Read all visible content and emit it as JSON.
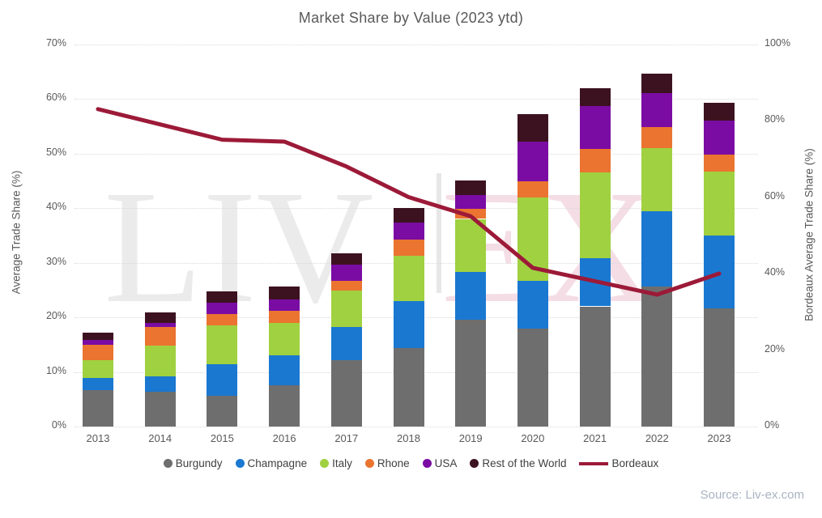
{
  "title": "Market Share by Value (2023 ytd)",
  "source": "Source: Liv-ex.com",
  "watermark": {
    "liv": "LIV",
    "ex": "EX"
  },
  "axes": {
    "left_title": "Average Trade Share (%)",
    "right_title": "Bordeaux Average Trade Share (%)",
    "left_ticks": [
      "70%",
      "60%",
      "50%",
      "40%",
      "30%",
      "20%",
      "10%",
      "0%"
    ],
    "right_ticks": [
      "100%",
      "80%",
      "60%",
      "40%",
      "20%",
      "0%"
    ]
  },
  "colors": {
    "grid": "#d9d9d9",
    "tick_text": "#595959",
    "legend_text": "#3f3f3f",
    "source_text": "#a9b3c2"
  },
  "chart_data": {
    "type": "combo-stacked-bar-line",
    "title": "Market Share by Value (2023 ytd)",
    "categories": [
      "2013",
      "2014",
      "2015",
      "2016",
      "2017",
      "2018",
      "2019",
      "2020",
      "2021",
      "2022",
      "2023"
    ],
    "left_axis": {
      "label": "Average Trade Share (%)",
      "min": 0,
      "max": 70,
      "tick_step": 10,
      "unit": "%"
    },
    "right_axis": {
      "label": "Bordeaux Average Trade Share (%)",
      "min": 0,
      "max": 100,
      "tick_step": 20,
      "unit": "%"
    },
    "grid": "dotted-horizontal",
    "legend_position": "bottom",
    "series": [
      {
        "name": "Burgundy",
        "type": "bar",
        "axis": "left",
        "color": "#6e6e6e",
        "values": [
          6.7,
          6.4,
          5.7,
          7.5,
          12.2,
          14.3,
          19.6,
          17.9,
          22.0,
          25.7,
          21.6
        ]
      },
      {
        "name": "Champagne",
        "type": "bar",
        "axis": "left",
        "color": "#1a78d1",
        "values": [
          2.2,
          2.8,
          5.7,
          5.5,
          6.0,
          8.6,
          8.7,
          8.8,
          8.8,
          13.7,
          13.4
        ]
      },
      {
        "name": "Italy",
        "type": "bar",
        "axis": "left",
        "color": "#a0d140",
        "values": [
          3.2,
          5.6,
          7.1,
          6.0,
          6.7,
          8.4,
          9.7,
          15.2,
          15.7,
          11.6,
          11.6
        ]
      },
      {
        "name": "Rhone",
        "type": "bar",
        "axis": "left",
        "color": "#ea7430",
        "values": [
          2.9,
          3.4,
          2.1,
          2.2,
          1.8,
          2.9,
          1.8,
          3.0,
          4.3,
          3.8,
          3.2
        ]
      },
      {
        "name": "USA",
        "type": "bar",
        "axis": "left",
        "color": "#7a0ca3",
        "values": [
          0.8,
          0.8,
          2.1,
          2.1,
          3.0,
          3.2,
          2.5,
          7.2,
          7.8,
          6.3,
          6.2
        ]
      },
      {
        "name": "Rest of the World",
        "type": "bar",
        "axis": "left",
        "color": "#3d1220",
        "values": [
          1.4,
          1.9,
          2.0,
          2.3,
          2.0,
          2.6,
          2.7,
          5.1,
          3.3,
          3.5,
          3.2
        ]
      },
      {
        "name": "Bordeaux",
        "type": "line",
        "axis": "right",
        "color": "#9c1a38",
        "values": [
          83,
          79,
          75,
          74.5,
          68,
          60,
          55,
          41.5,
          38,
          34.5,
          40
        ]
      }
    ],
    "bar_totals": [
      17.2,
      20.9,
      24.7,
      25.6,
      31.7,
      40.0,
      45.0,
      57.2,
      61.9,
      64.6,
      59.2
    ]
  }
}
